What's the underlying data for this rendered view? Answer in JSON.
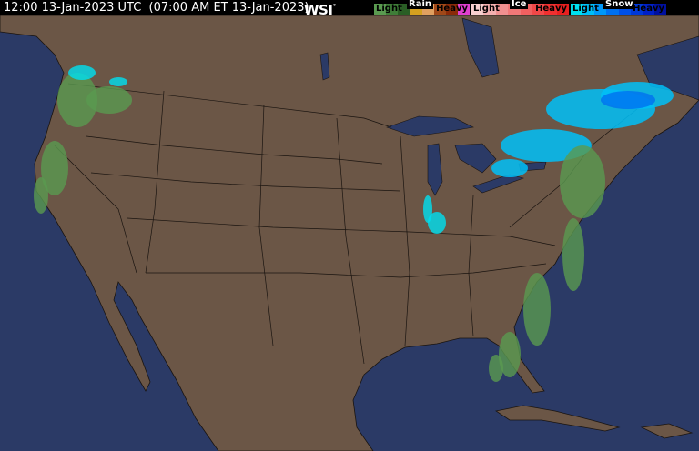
{
  "header": {
    "timestamp": "12:00 13-Jan-2023 UTC  (07:00 AM ET 13-Jan-2023)",
    "logo": "WSI"
  },
  "legend": [
    {
      "name": "Rain",
      "light": "Light",
      "heavy": "Heavy",
      "colors": [
        "#5a9a50",
        "#3f7d38",
        "#2a5e25",
        "#d4a020",
        "#e0a060",
        "#a04818",
        "#8a2a08",
        "#e040d0"
      ]
    },
    {
      "name": "Ice",
      "light": "Light",
      "heavy": "Heavy",
      "colors": [
        "#f8d0d0",
        "#f4b0b0",
        "#f09090",
        "#f07878",
        "#f06060",
        "#f04848",
        "#f03030",
        "#e82020"
      ]
    },
    {
      "name": "Snow",
      "light": "Light",
      "heavy": "Heavy",
      "colors": [
        "#00e0f0",
        "#00c0f8",
        "#0098f8",
        "#0070f0",
        "#0050e8",
        "#0038d8",
        "#0020c8",
        "#0010a0"
      ]
    }
  ],
  "colors": {
    "ocean": "#2b3a66",
    "land": "#6b5646",
    "borders": "#1a1410",
    "lakes": "#2b3a66"
  }
}
